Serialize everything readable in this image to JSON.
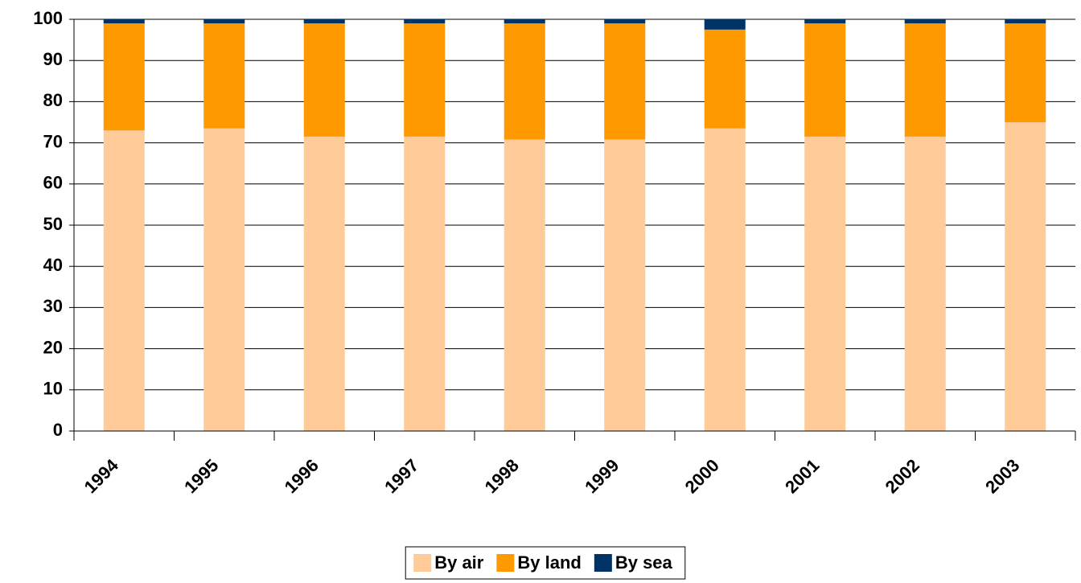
{
  "chart_data": {
    "type": "stacked_bar",
    "categories": [
      "1994",
      "1995",
      "1996",
      "1997",
      "1998",
      "1999",
      "2000",
      "2001",
      "2002",
      "2003"
    ],
    "series": [
      {
        "name": "By air",
        "color": "#FFCC99",
        "values": [
          73,
          73.5,
          71.5,
          71.5,
          70.8,
          70.8,
          73.5,
          71.5,
          71.5,
          75
        ]
      },
      {
        "name": "By land",
        "color": "#FF9900",
        "values": [
          26,
          25.5,
          27.5,
          27.5,
          28.2,
          28.2,
          24,
          27.5,
          27.5,
          24
        ]
      },
      {
        "name": "By sea",
        "color": "#003366",
        "values": [
          1,
          1,
          1,
          1,
          1,
          1,
          2.5,
          1,
          1,
          1
        ]
      }
    ],
    "ylim": [
      0,
      100
    ],
    "yticks": [
      0,
      10,
      20,
      30,
      40,
      50,
      60,
      70,
      80,
      90,
      100
    ],
    "grid": true,
    "legend": "bottom"
  }
}
